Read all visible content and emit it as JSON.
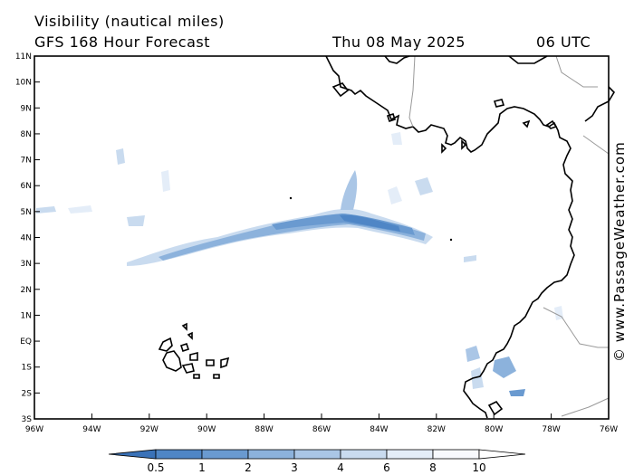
{
  "header": {
    "title_line1": "Visibility (nautical miles)",
    "title_line2": "GFS 168 Hour Forecast",
    "date": "Thu 08 May 2025",
    "time": "06 UTC"
  },
  "credit": "© www.PassageWeather.com",
  "axes": {
    "lat_labels": [
      "11N",
      "10N",
      "9N",
      "8N",
      "7N",
      "6N",
      "5N",
      "4N",
      "3N",
      "2N",
      "1N",
      "EQ",
      "1S",
      "2S",
      "3S"
    ],
    "lon_labels": [
      "96W",
      "94W",
      "92W",
      "90W",
      "88W",
      "86W",
      "84W",
      "82W",
      "80W",
      "78W",
      "76W"
    ]
  },
  "colorbar": {
    "labels": [
      "0.5",
      "1",
      "2",
      "3",
      "4",
      "6",
      "8",
      "10"
    ],
    "colors": [
      "#3a72b8",
      "#4f86c6",
      "#6a9ad0",
      "#8cb2dc",
      "#aac6e6",
      "#c9dbef",
      "#e4edf8",
      "#f7f9fd"
    ]
  },
  "colors": {
    "fog_dark": "#4f86c6",
    "fog_mid": "#8cb2dc",
    "fog_light": "#c9dbef",
    "land": "#000000",
    "border": "#999999"
  }
}
